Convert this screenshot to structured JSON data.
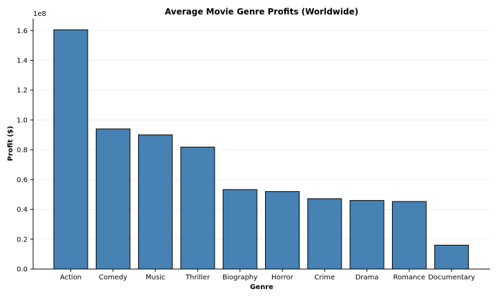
{
  "chart_data": {
    "type": "bar",
    "title": "Average Movie Genre Profits (Worldwide)",
    "xlabel": "Genre",
    "ylabel": "Profit ($)",
    "y_multiplier_label": "1e8",
    "categories": [
      "Action",
      "Comedy",
      "Music",
      "Thriller",
      "Biography",
      "Horror",
      "Crime",
      "Drama",
      "Romance",
      "Documentary"
    ],
    "values": [
      160500000,
      94000000,
      90000000,
      81800000,
      53300000,
      52000000,
      47200000,
      46000000,
      45300000,
      16000000
    ],
    "ylim": [
      0,
      168000000
    ],
    "yticks": [
      0,
      20000000,
      40000000,
      60000000,
      80000000,
      100000000,
      120000000,
      140000000,
      160000000
    ],
    "ytick_labels": [
      "0.0",
      "0.2",
      "0.4",
      "0.6",
      "0.8",
      "1.0",
      "1.2",
      "1.4",
      "1.6"
    ],
    "grid": true,
    "bar_color": "#4682b4",
    "edge_color": "#000000"
  }
}
